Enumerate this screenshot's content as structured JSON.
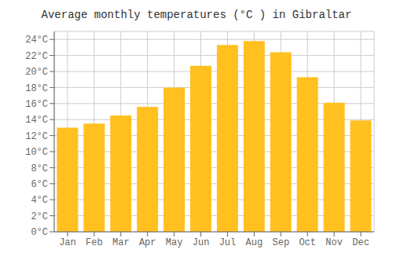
{
  "chart_data": {
    "type": "bar",
    "title": "Average monthly temperatures (°C ) in Gibraltar",
    "categories": [
      "Jan",
      "Feb",
      "Mar",
      "Apr",
      "May",
      "Jun",
      "Jul",
      "Aug",
      "Sep",
      "Oct",
      "Nov",
      "Dec"
    ],
    "values": [
      13.0,
      13.5,
      14.5,
      15.6,
      18.0,
      20.7,
      23.3,
      23.8,
      22.4,
      19.3,
      16.1,
      13.9
    ],
    "color": "#FFC020",
    "ylim": [
      0,
      25
    ],
    "yticks": [
      {
        "value": 0,
        "label": "0°C"
      },
      {
        "value": 2,
        "label": "2°C"
      },
      {
        "value": 4,
        "label": "4°C"
      },
      {
        "value": 6,
        "label": "6°C"
      },
      {
        "value": 8,
        "label": "8°C"
      },
      {
        "value": 10,
        "label": "10°C"
      },
      {
        "value": 12,
        "label": "12°C"
      },
      {
        "value": 14,
        "label": "14°C"
      },
      {
        "value": 16,
        "label": "16°C"
      },
      {
        "value": 18,
        "label": "18°C"
      },
      {
        "value": 20,
        "label": "20°C"
      },
      {
        "value": 22,
        "label": "22°C"
      },
      {
        "value": 24,
        "label": "24°C"
      }
    ],
    "grid": true
  }
}
